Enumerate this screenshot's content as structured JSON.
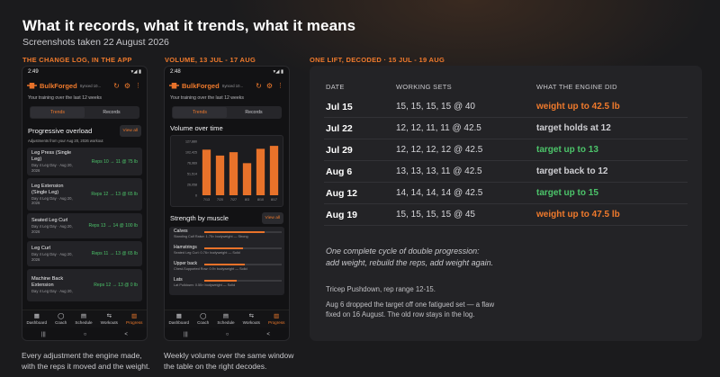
{
  "header": {
    "title": "What it records, what it trends, what it means",
    "subtitle": "Screenshots taken 22 August 2026"
  },
  "sections": {
    "change_log": "THE CHANGE LOG, IN THE APP",
    "volume": "VOLUME, 13 JUL - 17 AUG",
    "decoded": "ONE LIFT, DECODED  ·  15 JUL - 19 AUG"
  },
  "captions": {
    "left_1": "Every adjustment the engine made,",
    "left_2": "with the reps it moved and the weight.",
    "mid_1": "Weekly volume over the same window",
    "mid_2": "the table on the right decodes."
  },
  "phone_common": {
    "time": "2:49",
    "brand": "BulkForged",
    "sync": "Synced 10...",
    "hint": "Your training over the last 12 weeks",
    "tab_trends": "Trends",
    "tab_records": "Records",
    "nav": [
      "Dashboard",
      "Coach",
      "Schedule",
      "Workouts",
      "Progress"
    ],
    "sysnav": [
      "|||",
      "○",
      "<"
    ]
  },
  "phone1": {
    "section_title": "Progressive overload",
    "view_all": "View all",
    "sub": "Adjustments from your Aug 20, 2026 workout",
    "cards": [
      {
        "name": "Leg Press (Single Leg)",
        "date": "Day 4 Leg Day · Aug 20, 2026",
        "reps": "Reps 10 → 11 @ 75 lb"
      },
      {
        "name": "Leg Extension (Single Leg)",
        "date": "Day 4 Leg Day · Aug 20, 2026",
        "reps": "Reps 12 → 13 @ 65 lb"
      },
      {
        "name": "Seated Leg Curl",
        "date": "Day 4 Leg Day · Aug 20, 2026",
        "reps": "Reps 13 → 14 @ 100 lb"
      },
      {
        "name": "Leg Curl",
        "date": "Day 4 Leg Day · Aug 20, 2026",
        "reps": "Reps 11 → 13 @ 65 lb"
      },
      {
        "name": "Machine Back Extension",
        "date": "Day 4 Leg Day · Aug 20,",
        "reps": "Reps 12 → 13 @ 0 lb"
      }
    ]
  },
  "phone2": {
    "time": "2:48",
    "chart_title": "Volume over time",
    "muscle_title": "Strength by muscle",
    "view_all": "View all",
    "muscles": [
      {
        "name": "Calves",
        "detail": "Standing Calf Raise: 1.75× bodyweight — Strong",
        "level": 0.78
      },
      {
        "name": "Hamstrings",
        "detail": "Seated Leg Curl: 0.76× bodyweight — Solid",
        "level": 0.5
      },
      {
        "name": "Upper back",
        "detail": "Chest-Supported Row: 0.9× bodyweight — Solid",
        "level": 0.52
      },
      {
        "name": "Lats",
        "detail": "Lat Pulldown: 0.55× bodyweight — Solid",
        "level": 0.42
      }
    ]
  },
  "chart_data": {
    "type": "bar",
    "title": "Volume over time",
    "categories": [
      "7/13",
      "7/20",
      "7/27",
      "8/3",
      "8/10",
      "8/17"
    ],
    "values": [
      108000,
      94000,
      102000,
      76000,
      110000,
      117000
    ],
    "yticks": [
      "127,880",
      "102,425",
      "76,969",
      "51,514",
      "26,058",
      "0"
    ],
    "ylim": [
      0,
      127880
    ],
    "bar_color": "#e8722a"
  },
  "table": {
    "headers": [
      "DATE",
      "WORKING SETS",
      "WHAT THE ENGINE DID"
    ],
    "rows": [
      {
        "date": "Jul 15",
        "sets": "15, 15, 15, 15  @ 40",
        "engine": "weight up to 42.5 lb",
        "color": "#f07a2c"
      },
      {
        "date": "Jul 22",
        "sets": "12, 12, 11, 11  @ 42.5",
        "engine": "target holds at 12",
        "color": "#cfcfd3"
      },
      {
        "date": "Jul 29",
        "sets": "12, 12, 12, 12  @ 42.5",
        "engine": "target up to 13",
        "color": "#4cc46a"
      },
      {
        "date": "Aug 6",
        "sets": "13, 13, 13, 11  @ 42.5",
        "engine": "target back to 12",
        "color": "#cfcfd3"
      },
      {
        "date": "Aug 12",
        "sets": "14, 14, 14, 14  @ 42.5",
        "engine": "target up to 15",
        "color": "#4cc46a"
      },
      {
        "date": "Aug 19",
        "sets": "15, 15, 15, 15  @ 45",
        "engine": "weight up to 47.5 lb",
        "color": "#f07a2c"
      }
    ]
  },
  "summary": {
    "line1": "One complete cycle of double progression:",
    "line2": "add weight, rebuild the reps, add weight again.",
    "lift": "Tricep Pushdown, rep range 12-15.",
    "note1": "Aug 6 dropped the target off one fatigued set — a flaw",
    "note2": "fixed on 16 August. The old row stays in the log."
  }
}
